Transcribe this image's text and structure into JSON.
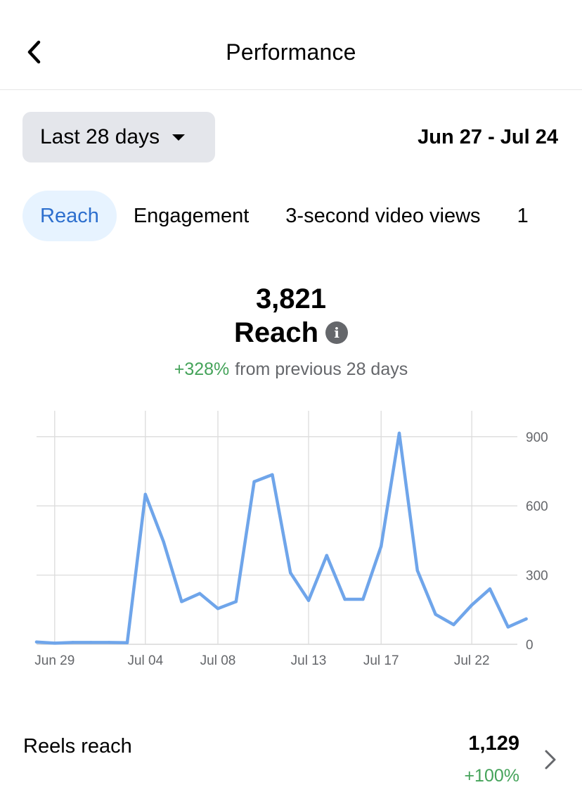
{
  "header": {
    "title": "Performance",
    "back_icon": "chevron-left-icon"
  },
  "filters": {
    "range_label": "Last 28 days",
    "range_caret_icon": "caret-down-icon",
    "date_range": "Jun 27 - Jul 24"
  },
  "tabs": [
    {
      "label": "Reach",
      "active": true
    },
    {
      "label": "Engagement",
      "active": false
    },
    {
      "label": "3-second video views",
      "active": false
    },
    {
      "label": "1",
      "active": false
    }
  ],
  "metric": {
    "value": "3,821",
    "label": "Reach",
    "info_icon": "info-icon",
    "change_pct": "+328%",
    "change_text": "from previous 28 days"
  },
  "colors": {
    "accent": "#2d6fce",
    "tab_active_bg": "#e7f3ff",
    "line": "#6fa5ea",
    "positive": "#45a35a",
    "muted": "#65676b"
  },
  "chart_data": {
    "type": "line",
    "x": [
      "Jun 28",
      "Jun 29",
      "Jun 30",
      "Jul 01",
      "Jul 02",
      "Jul 03",
      "Jul 04",
      "Jul 05",
      "Jul 06",
      "Jul 07",
      "Jul 08",
      "Jul 09",
      "Jul 10",
      "Jul 11",
      "Jul 12",
      "Jul 13",
      "Jul 14",
      "Jul 15",
      "Jul 16",
      "Jul 17",
      "Jul 18",
      "Jul 19",
      "Jul 20",
      "Jul 21",
      "Jul 22",
      "Jul 23",
      "Jul 24",
      "Jul 25"
    ],
    "series": [
      {
        "values": [
          10,
          5,
          8,
          8,
          8,
          7,
          650,
          445,
          185,
          220,
          155,
          185,
          705,
          735,
          310,
          190,
          385,
          195,
          195,
          425,
          915,
          320,
          130,
          85,
          170,
          240,
          75,
          110
        ]
      }
    ],
    "x_tick_labels": [
      "Jun 29",
      "Jul 04",
      "Jul 08",
      "Jul 13",
      "Jul 17",
      "Jul 22"
    ],
    "y_ticks": [
      0,
      300,
      600,
      900
    ],
    "ylim": [
      0,
      1000
    ],
    "grid": true,
    "y_axis_side": "right"
  },
  "list": {
    "label": "Reels reach",
    "value": "1,129",
    "change": "+100%",
    "chevron_icon": "chevron-right-icon"
  }
}
